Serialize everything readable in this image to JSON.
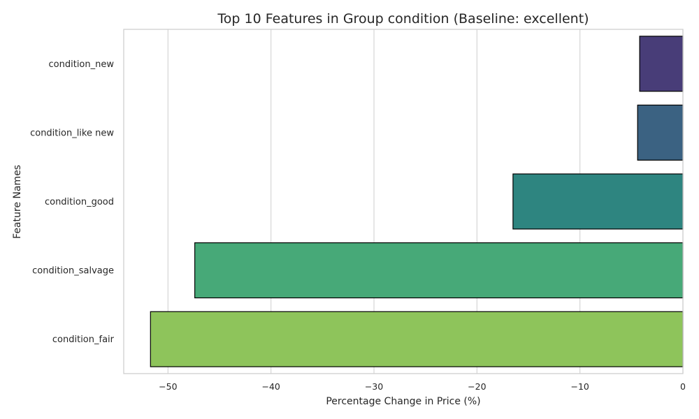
{
  "chart_data": {
    "type": "bar",
    "orientation": "horizontal",
    "title": "Top 10 Features in Group condition (Baseline: excellent)",
    "xlabel": "Percentage Change in Price (%)",
    "ylabel": "Feature Names",
    "categories": [
      "condition_new",
      "condition_like new",
      "condition_good",
      "condition_salvage",
      "condition_fair"
    ],
    "values": [
      -4.2,
      -4.4,
      -16.5,
      -47.4,
      -51.7
    ],
    "colors": [
      "#483d78",
      "#3b6282",
      "#2e8580",
      "#47a978",
      "#8ec45b"
    ],
    "xlim": [
      -54.3,
      0
    ],
    "xticks": [
      -50,
      -40,
      -30,
      -20,
      -10,
      0
    ],
    "xtick_labels": [
      "−50",
      "−40",
      "−30",
      "−20",
      "−10",
      "0"
    ],
    "grid": "vertical",
    "legend": "none"
  }
}
